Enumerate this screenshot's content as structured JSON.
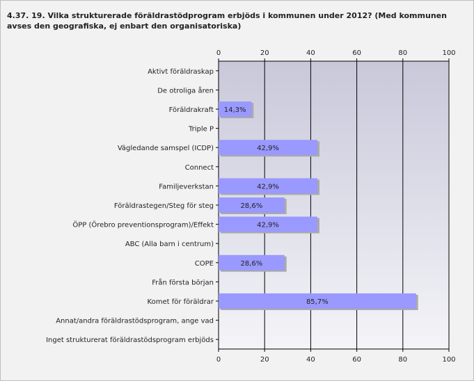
{
  "title": "4.37. 19. Vilka strukturerade föräldrastödprogram erbjöds i kommunen under 2012? (Med kommunen avses den geografiska, ej enbart den organisatoriska)",
  "colors": {
    "bar": "#9999ff",
    "plot_bg": "#d0d0e0",
    "grid": "#000000"
  },
  "chart_data": {
    "type": "bar",
    "orientation": "horizontal",
    "title": "4.37. 19. Vilka strukturerade föräldrastödprogram erbjöds i kommunen under 2012? (Med kommunen avses den geografiska, ej enbart den organisatoriska)",
    "xlim": [
      0,
      100
    ],
    "ticks": [
      "0",
      "20",
      "40",
      "60",
      "80",
      "100"
    ],
    "tick_values": [
      0,
      20,
      40,
      60,
      80,
      100
    ],
    "categories": [
      "Aktivt föräldraskap",
      "De otroliga åren",
      "Föräldrakraft",
      "Triple P",
      "Vägledande samspel (ICDP)",
      "Connect",
      "Familjeverkstan",
      "Föräldrastegen/Steg för steg",
      "ÖPP (Örebro preventionsprogram)/Effekt",
      "ABC (Alla barn i centrum)",
      "COPE",
      "Från första början",
      "Komet för föräldrar",
      "Annat/andra föräldrastödsprogram, ange vad",
      "Inget strukturerat föräldrastödsprogram erbjöds"
    ],
    "values": [
      0,
      0,
      14.3,
      0,
      42.9,
      0,
      42.9,
      28.6,
      42.9,
      0,
      28.6,
      0,
      85.7,
      0,
      0
    ],
    "labels": [
      "",
      "",
      "14,3%",
      "",
      "42,9%",
      "",
      "42,9%",
      "28,6%",
      "42,9%",
      "",
      "28,6%",
      "",
      "85,7%",
      "",
      ""
    ],
    "grid": true,
    "ticks_top_and_bottom": true
  }
}
